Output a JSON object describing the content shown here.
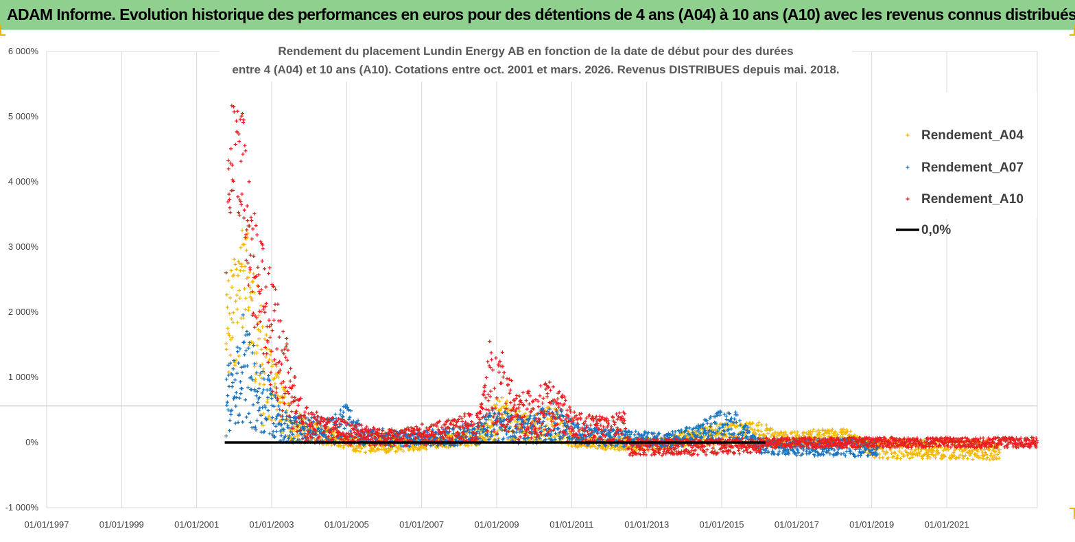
{
  "header": {
    "title": "ADAM Informe. Evolution historique des performances en euros pour des détentions de 4 ans (A04) à 10 ans (A10) avec les revenus connus distribués"
  },
  "chart_data": {
    "type": "scatter",
    "title_line1": "Rendement du placement Lundin Energy AB en fonction de la date de début pour des durées",
    "title_line2": "entre 4 (A04) et 10 ans (A10). Cotations entre oct. 2001 et mars. 2026. Revenus DISTRIBUES depuis mai. 2018.",
    "x_tick_labels": [
      "01/01/1997",
      "01/01/1999",
      "01/01/2001",
      "01/01/2003",
      "01/01/2005",
      "01/01/2007",
      "01/01/2009",
      "01/01/2011",
      "01/01/2013",
      "01/01/2015",
      "01/01/2017",
      "01/01/2019",
      "01/01/2021"
    ],
    "y_tick_labels": [
      "6 000%",
      "5 000%",
      "4 000%",
      "3 000%",
      "2 000%",
      "1 000%",
      "0%",
      "-1 000%"
    ],
    "xlim": [
      "1997-01-01",
      "2023-06-01"
    ],
    "ylim": [
      -1000,
      6000
    ],
    "grid": "vertical",
    "legend_position": "top-right",
    "colors": {
      "A04": "#f5b800",
      "A07": "#1a74c0",
      "A10": "#e82020",
      "zero": "#000000"
    },
    "series": [
      {
        "name": "Rendement_A04",
        "points": [
          [
            "2001-10-15",
            1500
          ],
          [
            "2001-11-15",
            1800
          ],
          [
            "2002-01-01",
            2000
          ],
          [
            "2002-02-15",
            2200
          ],
          [
            "2002-04-01",
            2600
          ],
          [
            "2002-06-01",
            2300
          ],
          [
            "2002-08-01",
            1700
          ],
          [
            "2002-10-01",
            1100
          ],
          [
            "2003-01-01",
            750
          ],
          [
            "2003-04-01",
            550
          ],
          [
            "2003-07-01",
            300
          ],
          [
            "2004-01-01",
            150
          ],
          [
            "2004-07-01",
            120
          ],
          [
            "2005-01-01",
            -20
          ],
          [
            "2005-07-01",
            -50
          ],
          [
            "2006-01-01",
            -50
          ],
          [
            "2006-07-01",
            -30
          ],
          [
            "2007-01-01",
            -20
          ],
          [
            "2007-07-01",
            0
          ],
          [
            "2008-01-01",
            50
          ],
          [
            "2008-07-01",
            100
          ],
          [
            "2008-11-01",
            200
          ],
          [
            "2009-01-01",
            350
          ],
          [
            "2009-03-01",
            380
          ],
          [
            "2009-07-01",
            250
          ],
          [
            "2010-01-01",
            200
          ],
          [
            "2010-07-01",
            300
          ],
          [
            "2011-01-01",
            30
          ],
          [
            "2011-07-01",
            0
          ],
          [
            "2012-01-01",
            -20
          ],
          [
            "2012-07-01",
            -30
          ],
          [
            "2013-01-01",
            -30
          ],
          [
            "2013-07-01",
            -20
          ],
          [
            "2014-01-01",
            50
          ],
          [
            "2014-07-01",
            100
          ],
          [
            "2015-01-01",
            150
          ],
          [
            "2015-07-01",
            120
          ],
          [
            "2016-01-01",
            150
          ],
          [
            "2016-07-01",
            50
          ],
          [
            "2017-01-01",
            50
          ],
          [
            "2017-07-01",
            70
          ],
          [
            "2018-01-01",
            80
          ],
          [
            "2018-06-01",
            70
          ],
          [
            "2019-01-01",
            -100
          ],
          [
            "2020-01-01",
            -100
          ],
          [
            "2021-01-01",
            -100
          ],
          [
            "2022-06-01",
            -110
          ]
        ]
      },
      {
        "name": "Rendement_A07",
        "points": [
          [
            "2001-10-15",
            600
          ],
          [
            "2001-12-01",
            750
          ],
          [
            "2002-02-01",
            850
          ],
          [
            "2002-04-01",
            1200
          ],
          [
            "2002-06-01",
            1000
          ],
          [
            "2002-08-01",
            800
          ],
          [
            "2002-10-01",
            600
          ],
          [
            "2003-01-01",
            550
          ],
          [
            "2003-04-01",
            250
          ],
          [
            "2004-01-01",
            200
          ],
          [
            "2004-07-01",
            180
          ],
          [
            "2005-01-01",
            300
          ],
          [
            "2005-07-01",
            60
          ],
          [
            "2006-01-01",
            80
          ],
          [
            "2006-07-01",
            50
          ],
          [
            "2007-01-01",
            60
          ],
          [
            "2007-07-01",
            80
          ],
          [
            "2008-01-01",
            100
          ],
          [
            "2008-07-01",
            150
          ],
          [
            "2008-11-01",
            250
          ],
          [
            "2009-01-01",
            280
          ],
          [
            "2009-07-01",
            200
          ],
          [
            "2010-01-01",
            200
          ],
          [
            "2010-07-01",
            350
          ],
          [
            "2011-01-01",
            150
          ],
          [
            "2011-07-01",
            100
          ],
          [
            "2012-01-01",
            80
          ],
          [
            "2012-07-01",
            60
          ],
          [
            "2013-01-01",
            50
          ],
          [
            "2013-07-01",
            40
          ],
          [
            "2014-01-01",
            80
          ],
          [
            "2014-07-01",
            150
          ],
          [
            "2015-01-01",
            250
          ],
          [
            "2015-06-01",
            230
          ],
          [
            "2016-01-01",
            -50
          ],
          [
            "2017-01-01",
            -70
          ],
          [
            "2018-01-01",
            -80
          ],
          [
            "2019-03-01",
            -80
          ]
        ]
      },
      {
        "name": "Rendement_A10",
        "points": [
          [
            "2001-10-15",
            3100
          ],
          [
            "2001-11-01",
            3800
          ],
          [
            "2001-12-01",
            4300
          ],
          [
            "2002-01-01",
            4500
          ],
          [
            "2002-01-15",
            5050
          ],
          [
            "2002-02-15",
            4000
          ],
          [
            "2002-03-15",
            4500
          ],
          [
            "2002-04-15",
            3800
          ],
          [
            "2002-05-15",
            3300
          ],
          [
            "2002-06-15",
            2800
          ],
          [
            "2002-08-01",
            2600
          ],
          [
            "2002-10-01",
            2300
          ],
          [
            "2003-01-01",
            1700
          ],
          [
            "2003-04-01",
            1300
          ],
          [
            "2003-07-01",
            700
          ],
          [
            "2003-10-01",
            400
          ],
          [
            "2004-01-01",
            250
          ],
          [
            "2004-07-01",
            200
          ],
          [
            "2005-01-01",
            150
          ],
          [
            "2005-07-01",
            100
          ],
          [
            "2006-01-01",
            70
          ],
          [
            "2006-07-01",
            80
          ],
          [
            "2007-01-01",
            120
          ],
          [
            "2007-07-01",
            150
          ],
          [
            "2008-01-01",
            200
          ],
          [
            "2008-07-01",
            250
          ],
          [
            "2008-10-01",
            700
          ],
          [
            "2008-11-01",
            950
          ],
          [
            "2009-01-01",
            700
          ],
          [
            "2009-03-01",
            800
          ],
          [
            "2009-07-01",
            400
          ],
          [
            "2010-01-01",
            450
          ],
          [
            "2010-07-01",
            550
          ],
          [
            "2011-01-01",
            250
          ],
          [
            "2011-07-01",
            200
          ],
          [
            "2012-01-01",
            180
          ],
          [
            "2012-06-01",
            250
          ],
          [
            "2012-07-01",
            -70
          ],
          [
            "2013-01-01",
            -70
          ],
          [
            "2014-01-01",
            -70
          ],
          [
            "2015-01-01",
            -60
          ],
          [
            "2016-01-01",
            -50
          ],
          [
            "2016-03-01",
            0
          ],
          [
            "2018-01-01",
            0
          ],
          [
            "2020-01-01",
            0
          ],
          [
            "2023-06-01",
            0
          ]
        ]
      },
      {
        "name": "0,0%",
        "points": [
          [
            "2001-10-01",
            0
          ],
          [
            "2016-03-01",
            0
          ]
        ]
      }
    ]
  }
}
